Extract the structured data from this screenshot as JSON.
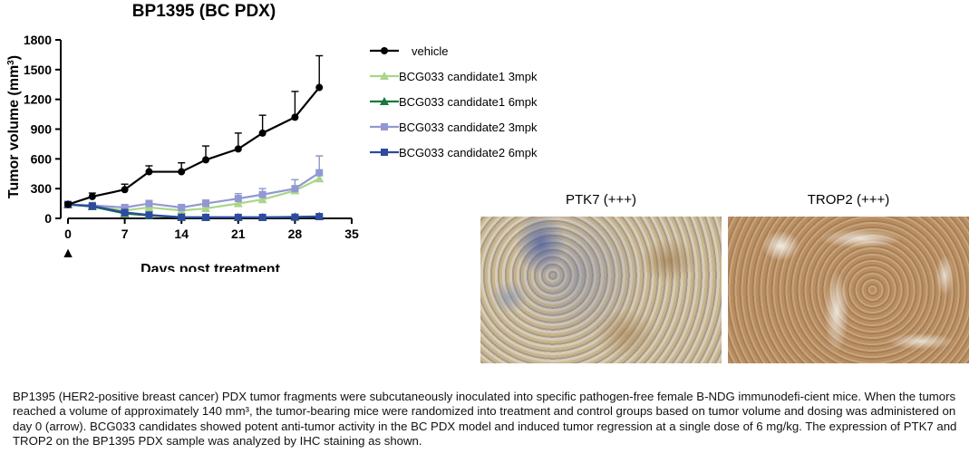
{
  "chart_data": {
    "type": "line",
    "title": "BP1395 (BC PDX)",
    "xlabel": "Days post treatment",
    "ylabel_main": "Tumor volume (mm",
    "ylabel_sup": "3",
    "ylabel_close": ")",
    "xlim": [
      0,
      35
    ],
    "ylim": [
      0,
      1800
    ],
    "xticks": [
      0,
      7,
      14,
      21,
      28,
      35
    ],
    "yticks": [
      0,
      300,
      600,
      900,
      1200,
      1500,
      1800
    ],
    "x": [
      0,
      3,
      7,
      10,
      14,
      17,
      21,
      24,
      28,
      31
    ],
    "legend_position": "right",
    "dosing_marker": {
      "day": 0,
      "symbol": "▲"
    },
    "series": [
      {
        "name": "vehicle",
        "color": "#000000",
        "marker": "circle",
        "values": [
          140,
          220,
          290,
          470,
          470,
          590,
          700,
          860,
          1020,
          1320
        ],
        "errors": [
          20,
          35,
          55,
          60,
          90,
          140,
          160,
          180,
          260,
          320
        ]
      },
      {
        "name": "BCG033 candidate1 3mpk",
        "color": "#a9d68a",
        "marker": "triangle",
        "values": [
          140,
          120,
          80,
          110,
          80,
          100,
          150,
          190,
          280,
          400
        ],
        "errors": [
          15,
          20,
          20,
          25,
          20,
          30,
          40,
          60,
          110,
          230
        ]
      },
      {
        "name": "BCG033 candidate1 6mpk",
        "color": "#157a3a",
        "marker": "triangle",
        "values": [
          140,
          120,
          50,
          30,
          10,
          10,
          10,
          10,
          15,
          20
        ],
        "errors": [
          10,
          15,
          10,
          8,
          5,
          5,
          5,
          5,
          5,
          5
        ]
      },
      {
        "name": "BCG033 candidate2 3mpk",
        "color": "#9198d2",
        "marker": "square",
        "values": [
          140,
          130,
          110,
          150,
          110,
          150,
          200,
          240,
          300,
          460
        ],
        "errors": [
          15,
          20,
          25,
          30,
          25,
          35,
          50,
          60,
          90,
          170
        ]
      },
      {
        "name": "BCG033 candidate2 6mpk",
        "color": "#2e4a9e",
        "marker": "square",
        "values": [
          140,
          125,
          60,
          35,
          12,
          10,
          10,
          10,
          12,
          18
        ],
        "errors": [
          10,
          15,
          10,
          8,
          5,
          5,
          5,
          5,
          5,
          5
        ]
      }
    ]
  },
  "ihc": {
    "panels": [
      {
        "title": "PTK7 (+++)"
      },
      {
        "title": "TROP2 (+++)"
      }
    ]
  },
  "caption": "BP1395 (HER2-positive breast cancer) PDX tumor fragments were subcutaneously inoculated into specific pathogen-free female B-NDG immunodefi-cient mice. When the tumors reached a volume of approximately 140 mm³, the tumor-bearing mice were randomized into treatment and control groups based on tumor volume and dosing was administered on day 0 (arrow). BCG033 candidates showed potent anti-tumor activity in the BC PDX model and induced tumor regression at a single dose of 6 mg/kg. The expression of PTK7 and TROP2 on the BP1395 PDX sample was analyzed by IHC staining as shown."
}
